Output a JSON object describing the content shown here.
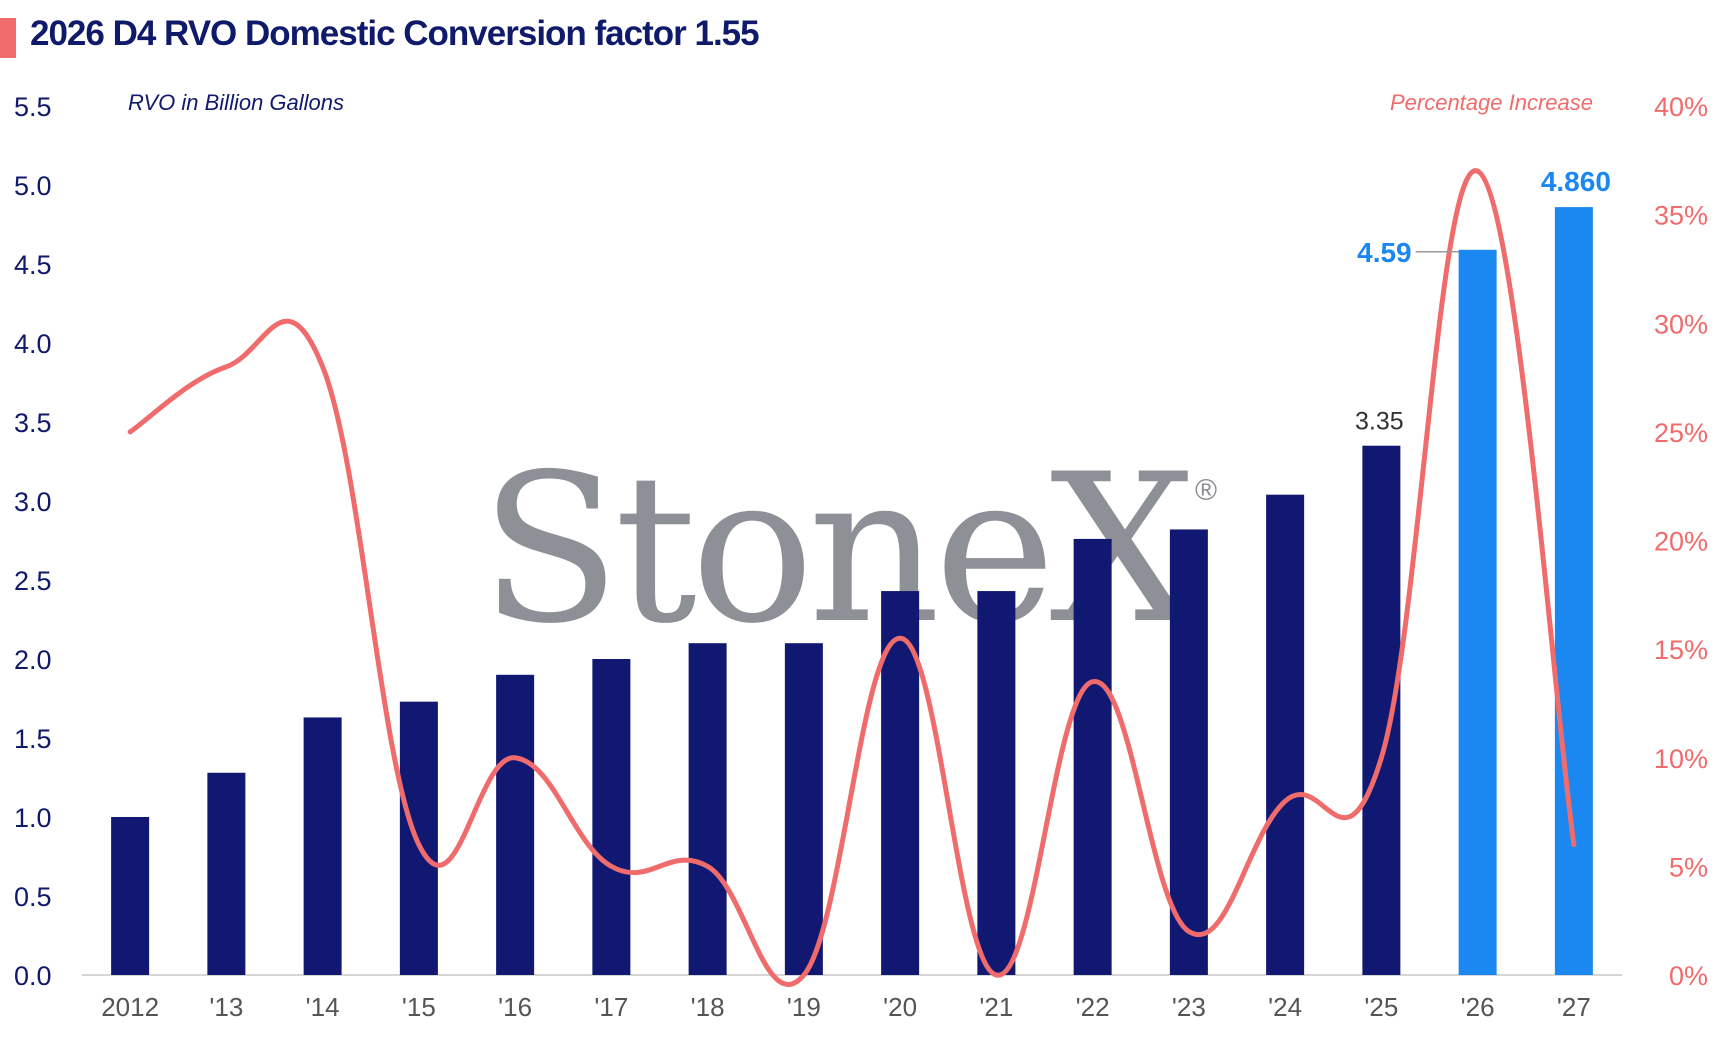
{
  "colors": {
    "navy": "#101872",
    "blue": "#1b87f0",
    "line": "#f06b6b",
    "axis_left": "#101a6b",
    "axis_right": "#f06b6b",
    "tick_x": "#555555",
    "watermark": "#878a90"
  },
  "title": "2026 D4 RVO Domestic Conversion factor 1.55",
  "watermark": {
    "text": "StoneX",
    "mark": "®"
  },
  "chart_data": {
    "type": "bar",
    "categories": [
      "2012",
      "'13",
      "'14",
      "'15",
      "'16",
      "'17",
      "'18",
      "'19",
      "'20",
      "'21",
      "'22",
      "'23",
      "'24",
      "'25",
      "'26",
      "'27"
    ],
    "series": [
      {
        "name": "RVO in Billion Gallons",
        "type": "bar",
        "axis": "left",
        "values": [
          1.0,
          1.28,
          1.63,
          1.73,
          1.9,
          2.0,
          2.1,
          2.1,
          2.43,
          2.43,
          2.76,
          2.82,
          3.04,
          3.35,
          4.59,
          4.86
        ],
        "highlight_from_index": 14
      },
      {
        "name": "Percentage Increase",
        "type": "line",
        "axis": "right",
        "values": [
          25,
          28,
          28,
          6,
          10,
          5,
          5,
          0,
          15.5,
          0,
          13.5,
          2,
          8,
          10,
          37,
          6
        ]
      }
    ],
    "left_axis": {
      "label": "RVO in Billion Gallons",
      "ylim": [
        0,
        5.5
      ],
      "ticks": [
        "0.0",
        "0.5",
        "1.0",
        "1.5",
        "2.0",
        "2.5",
        "3.0",
        "3.5",
        "4.0",
        "4.5",
        "5.0",
        "5.5"
      ]
    },
    "right_axis": {
      "label": "Percentage Increase",
      "ylim": [
        0,
        40
      ],
      "ticks": [
        "0%",
        "5%",
        "10%",
        "15%",
        "20%",
        "25%",
        "30%",
        "35%",
        "40%"
      ]
    },
    "data_labels": [
      {
        "index": 13,
        "text": "3.35"
      },
      {
        "index": 14,
        "text": "4.59"
      },
      {
        "index": 15,
        "text": "4.860"
      }
    ],
    "grid": false
  }
}
